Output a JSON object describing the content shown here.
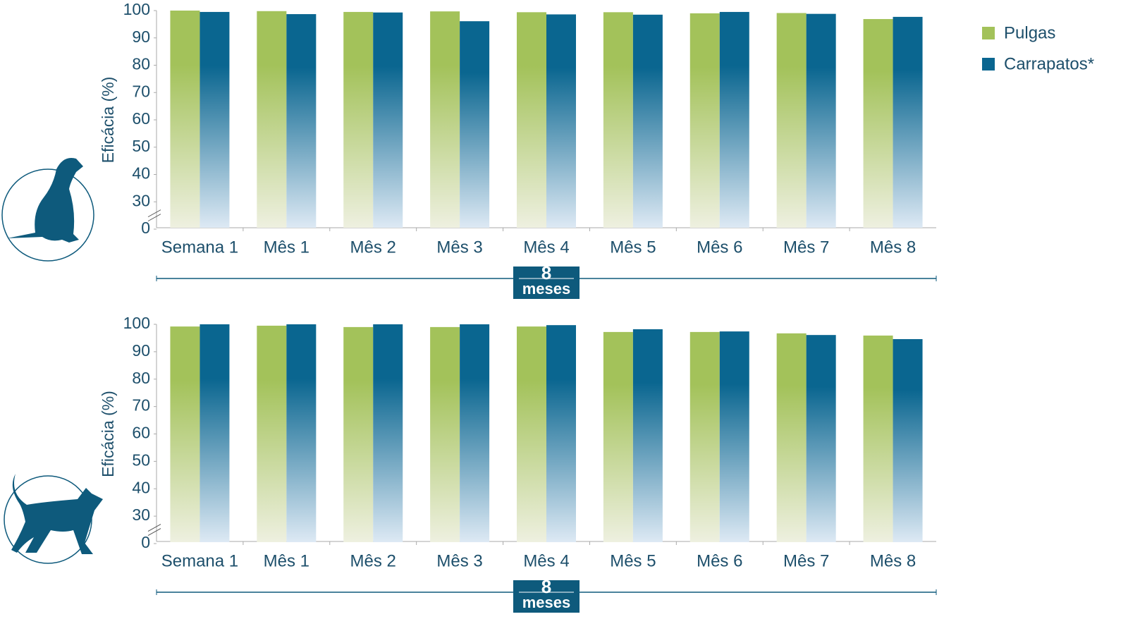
{
  "chart_data": [
    {
      "type": "bar",
      "ylabel": "Eficácia (%)",
      "categories": [
        "Semana 1",
        "Mês 1",
        "Mês 2",
        "Mês 3",
        "Mês 4",
        "Mês 5",
        "Mês 6",
        "Mês 7",
        "Mês 8"
      ],
      "series": [
        {
          "name": "Pulgas",
          "color": "#a3c25a",
          "values": [
            100,
            99.8,
            99.5,
            99.7,
            99.4,
            99.4,
            99,
            99.1,
            96.9
          ]
        },
        {
          "name": "Carrapatos*",
          "color": "#0a6690",
          "values": [
            99.5,
            98.7,
            99.3,
            96.1,
            98.6,
            98.5,
            99.5,
            98.8,
            97.7
          ]
        }
      ],
      "ylim": [
        0,
        100
      ],
      "yticks": [
        0,
        30,
        40,
        50,
        60,
        70,
        80,
        90,
        100
      ],
      "axis_break": [
        0,
        30
      ],
      "period": {
        "number": "8",
        "unit": "meses"
      },
      "legend": "top-right"
    },
    {
      "type": "bar",
      "ylabel": "Eficácia (%)",
      "categories": [
        "Semana 1",
        "Mês 1",
        "Mês 2",
        "Mês 3",
        "Mês 4",
        "Mês 5",
        "Mês 6",
        "Mês 7",
        "Mês 8"
      ],
      "series": [
        {
          "color": "#a3c25a",
          "values": [
            99.2,
            99.5,
            99,
            99,
            99.2,
            97.2,
            97.2,
            96.7,
            95.9
          ]
        },
        {
          "color": "#0a6690",
          "values": [
            100,
            100,
            100,
            100,
            99.7,
            98.2,
            97.4,
            96.1,
            94.6
          ]
        }
      ],
      "ylim": [
        0,
        100
      ],
      "yticks": [
        0,
        30,
        40,
        50,
        60,
        70,
        80,
        90,
        100
      ],
      "axis_break": [
        0,
        30
      ],
      "period": {
        "number": "8",
        "unit": "meses"
      }
    }
  ]
}
